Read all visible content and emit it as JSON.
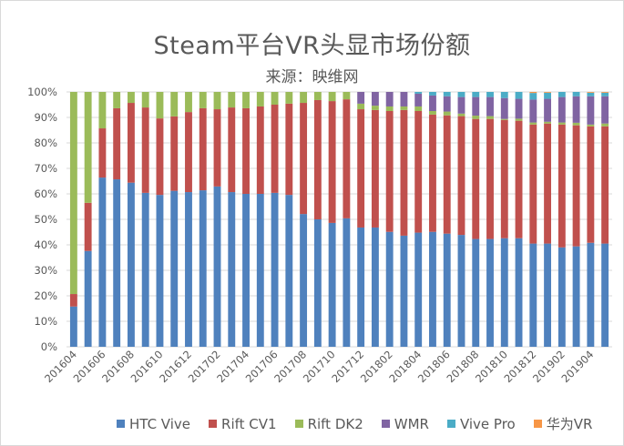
{
  "chart_data": {
    "type": "bar",
    "stacked": true,
    "percent_stacked": true,
    "title": "Steam平台VR头显市场份额",
    "subtitle": "来源：映维网",
    "xlabel": "",
    "ylabel": "",
    "ylim": [
      0,
      100
    ],
    "y_ticks": [
      "0%",
      "10%",
      "20%",
      "30%",
      "40%",
      "50%",
      "60%",
      "70%",
      "80%",
      "90%",
      "100%"
    ],
    "grid": true,
    "legend_position": "bottom",
    "categories": [
      "201604",
      "201605",
      "201606",
      "201607",
      "201608",
      "201609",
      "201610",
      "201611",
      "201612",
      "201701",
      "201702",
      "201703",
      "201704",
      "201705",
      "201706",
      "201707",
      "201708",
      "201709",
      "201710",
      "201711",
      "201712",
      "201801",
      "201802",
      "201803",
      "201804",
      "201805",
      "201806",
      "201807",
      "201808",
      "201809",
      "201810",
      "201811",
      "201812",
      "201901",
      "201902",
      "201903",
      "201904",
      "201905"
    ],
    "x_tick_labels": [
      "201604",
      "201606",
      "201608",
      "201610",
      "201612",
      "201702",
      "201704",
      "201706",
      "201708",
      "201710",
      "201712",
      "201802",
      "201804",
      "201806",
      "201808",
      "201810",
      "201812",
      "201902",
      "201904"
    ],
    "series": [
      {
        "name": "HTC Vive",
        "color": "#4f81bd",
        "values": [
          15.8,
          37.6,
          66.4,
          65.7,
          64.4,
          60.4,
          59.6,
          61.2,
          60.7,
          61.4,
          62.9,
          60.7,
          60.0,
          60.0,
          60.4,
          59.6,
          52.1,
          50.0,
          48.6,
          50.4,
          46.8,
          46.8,
          45.1,
          43.6,
          44.8,
          45.1,
          44.4,
          43.9,
          42.3,
          42.3,
          42.6,
          42.6,
          40.5,
          40.5,
          39.0,
          39.4,
          40.8,
          40.5
        ]
      },
      {
        "name": "Rift CV1",
        "color": "#c0504d",
        "values": [
          4.9,
          18.9,
          19.3,
          27.9,
          31.3,
          33.5,
          30.0,
          29.2,
          31.4,
          32.2,
          30.3,
          33.2,
          33.6,
          34.3,
          34.6,
          35.8,
          43.6,
          46.8,
          47.8,
          46.7,
          46.4,
          46.1,
          47.4,
          49.3,
          47.7,
          46.0,
          46.4,
          46.6,
          47.1,
          47.1,
          46.4,
          46.1,
          46.7,
          47.1,
          48.2,
          47.5,
          45.7,
          46.0
        ]
      },
      {
        "name": "Rift DK2",
        "color": "#9bbb59",
        "values": [
          79.3,
          43.5,
          14.3,
          6.4,
          4.3,
          6.1,
          10.4,
          9.6,
          7.9,
          6.4,
          6.8,
          6.1,
          6.4,
          5.7,
          5.0,
          4.6,
          4.3,
          3.2,
          3.6,
          2.9,
          2.2,
          1.7,
          1.8,
          1.4,
          1.8,
          1.4,
          1.5,
          1.0,
          1.3,
          1.1,
          0.4,
          0.8,
          0.8,
          0.7,
          0.8,
          1.0,
          0.7,
          1.1
        ]
      },
      {
        "name": "WMR",
        "color": "#8064a2",
        "values": [
          0,
          0,
          0,
          0,
          0,
          0,
          0,
          0,
          0,
          0,
          0,
          0,
          0,
          0,
          0,
          0,
          0,
          0,
          0,
          0,
          4.6,
          5.4,
          5.7,
          5.7,
          5.0,
          6.1,
          6.0,
          6.5,
          7.3,
          7.5,
          8.2,
          7.8,
          9.0,
          9.0,
          10.0,
          10.4,
          11.1,
          10.7
        ]
      },
      {
        "name": "Vive Pro",
        "color": "#4bacc6",
        "values": [
          0,
          0,
          0,
          0,
          0,
          0,
          0,
          0,
          0,
          0,
          0,
          0,
          0,
          0,
          0,
          0,
          0,
          0,
          0,
          0,
          0,
          0,
          0,
          0,
          0.7,
          1.4,
          1.7,
          2.0,
          2.0,
          2.0,
          2.4,
          2.7,
          2.6,
          2.4,
          2.0,
          1.7,
          1.4,
          1.4
        ]
      },
      {
        "name": "华为VR",
        "color": "#f79646",
        "values": [
          0,
          0,
          0,
          0,
          0,
          0,
          0,
          0,
          0,
          0,
          0,
          0,
          0,
          0,
          0,
          0,
          0,
          0,
          0,
          0,
          0,
          0,
          0,
          0,
          0,
          0,
          0,
          0,
          0,
          0,
          0,
          0,
          0.4,
          0.3,
          0,
          0,
          0.3,
          0.3
        ]
      }
    ]
  }
}
